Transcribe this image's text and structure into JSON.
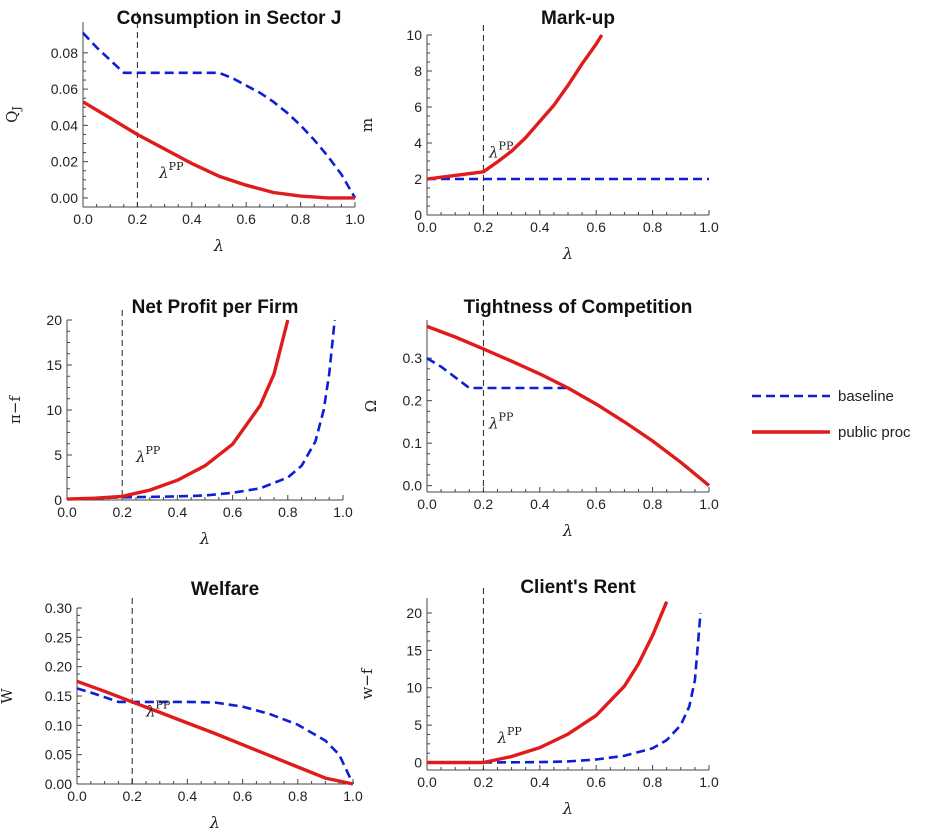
{
  "legend": {
    "position": "right",
    "entries": [
      {
        "label": "baseline",
        "color": "#0a1fd6",
        "dash": true
      },
      {
        "label": "public proc",
        "color": "#e01b1b",
        "dash": false
      }
    ]
  },
  "chart_data": [
    {
      "type": "line",
      "title": "Consumption in Sector J",
      "xlabel": "λ",
      "ylabel": "Q",
      "ylabel_sub": "J",
      "xlim": [
        0,
        1
      ],
      "ylim": [
        -0.005,
        0.097
      ],
      "xticks": [
        0,
        0.2,
        0.4,
        0.6,
        0.8,
        1.0
      ],
      "xtick_labels": [
        "0.0",
        "0.2",
        "0.4",
        "0.6",
        "0.8",
        "1.0"
      ],
      "yticks": [
        0,
        0.02,
        0.04,
        0.06,
        0.08
      ],
      "ytick_labels": [
        "0.00",
        "0.02",
        "0.04",
        "0.06",
        "0.08"
      ],
      "vline": 0.2,
      "annotation": {
        "text": "λ",
        "sup": "PP",
        "x": 0.28,
        "y": 0.011
      },
      "series": [
        {
          "name": "baseline",
          "style": "dashed",
          "color": "#0a1fd6",
          "x": [
            0,
            0.05,
            0.1,
            0.15,
            0.2,
            0.3,
            0.4,
            0.5,
            0.55,
            0.6,
            0.65,
            0.7,
            0.75,
            0.8,
            0.85,
            0.9,
            0.95,
            1.0
          ],
          "y": [
            0.091,
            0.083,
            0.076,
            0.069,
            0.069,
            0.069,
            0.069,
            0.069,
            0.066,
            0.062,
            0.058,
            0.053,
            0.047,
            0.04,
            0.032,
            0.023,
            0.013,
            0.0
          ]
        },
        {
          "name": "public proc",
          "style": "solid",
          "color": "#e01b1b",
          "x": [
            0,
            0.1,
            0.2,
            0.3,
            0.4,
            0.5,
            0.6,
            0.7,
            0.8,
            0.9,
            1.0
          ],
          "y": [
            0.053,
            0.044,
            0.035,
            0.027,
            0.019,
            0.012,
            0.007,
            0.003,
            0.001,
            0.0,
            0.0
          ]
        }
      ]
    },
    {
      "type": "line",
      "title": "Mark-up",
      "xlabel": "λ",
      "ylabel": "m",
      "xlim": [
        0,
        1
      ],
      "ylim": [
        0,
        10
      ],
      "xticks": [
        0,
        0.2,
        0.4,
        0.6,
        0.8,
        1.0
      ],
      "xtick_labels": [
        "0.0",
        "0.2",
        "0.4",
        "0.6",
        "0.8",
        "1.0"
      ],
      "yticks": [
        0,
        2,
        4,
        6,
        8,
        10
      ],
      "ytick_labels": [
        "0",
        "2",
        "4",
        "6",
        "8",
        "10"
      ],
      "vline": 0.2,
      "annotation": {
        "text": "λ",
        "sup": "PP",
        "x": 0.22,
        "y": 3.2
      },
      "series": [
        {
          "name": "baseline",
          "style": "dashed",
          "color": "#0a1fd6",
          "x": [
            0,
            1.0
          ],
          "y": [
            2,
            2
          ]
        },
        {
          "name": "public proc",
          "style": "solid",
          "color": "#e01b1b",
          "x": [
            0,
            0.1,
            0.2,
            0.25,
            0.3,
            0.35,
            0.4,
            0.45,
            0.5,
            0.55,
            0.6,
            0.62
          ],
          "y": [
            2.0,
            2.2,
            2.4,
            2.95,
            3.55,
            4.3,
            5.2,
            6.1,
            7.2,
            8.4,
            9.5,
            10.0
          ]
        }
      ]
    },
    {
      "type": "line",
      "title": "Net Profit per Firm",
      "xlabel": "λ",
      "ylabel": "π−f",
      "xlim": [
        0,
        1
      ],
      "ylim": [
        0,
        20
      ],
      "xticks": [
        0,
        0.2,
        0.4,
        0.6,
        0.8,
        1.0
      ],
      "xtick_labels": [
        "0.0",
        "0.2",
        "0.4",
        "0.6",
        "0.8",
        "1.0"
      ],
      "yticks": [
        0,
        5,
        10,
        15,
        20
      ],
      "ytick_labels": [
        "0",
        "5",
        "10",
        "15",
        "20"
      ],
      "vline": 0.2,
      "annotation": {
        "text": "λ",
        "sup": "PP",
        "x": 0.25,
        "y": 4.2
      },
      "series": [
        {
          "name": "baseline",
          "style": "dashed",
          "color": "#0a1fd6",
          "x": [
            0,
            0.2,
            0.3,
            0.4,
            0.5,
            0.6,
            0.7,
            0.8,
            0.85,
            0.9,
            0.93,
            0.95,
            0.97
          ],
          "y": [
            0.1,
            0.3,
            0.35,
            0.4,
            0.5,
            0.8,
            1.3,
            2.5,
            3.8,
            6.5,
            10.0,
            14.0,
            20.0
          ]
        },
        {
          "name": "public proc",
          "style": "solid",
          "color": "#e01b1b",
          "x": [
            0,
            0.1,
            0.2,
            0.3,
            0.4,
            0.5,
            0.6,
            0.7,
            0.75,
            0.8
          ],
          "y": [
            0.1,
            0.2,
            0.4,
            1.1,
            2.2,
            3.8,
            6.2,
            10.5,
            14.0,
            20.0
          ]
        }
      ]
    },
    {
      "type": "line",
      "title": "Tightness of Competition",
      "xlabel": "λ",
      "ylabel": "Ω",
      "xlim": [
        0,
        1
      ],
      "ylim": [
        -0.015,
        0.39
      ],
      "xticks": [
        0,
        0.2,
        0.4,
        0.6,
        0.8,
        1.0
      ],
      "xtick_labels": [
        "0.0",
        "0.2",
        "0.4",
        "0.6",
        "0.8",
        "1.0"
      ],
      "yticks": [
        0,
        0.1,
        0.2,
        0.3
      ],
      "ytick_labels": [
        "0.0",
        "0.1",
        "0.2",
        "0.3"
      ],
      "vline": 0.2,
      "annotation": {
        "text": "λ",
        "sup": "PP",
        "x": 0.22,
        "y": 0.135
      },
      "series": [
        {
          "name": "baseline",
          "style": "dashed",
          "color": "#0a1fd6",
          "x": [
            0,
            0.05,
            0.1,
            0.15,
            0.3,
            0.5
          ],
          "y": [
            0.3,
            0.28,
            0.255,
            0.23,
            0.23,
            0.23
          ]
        },
        {
          "name": "public proc",
          "style": "solid",
          "color": "#e01b1b",
          "x": [
            0,
            0.1,
            0.2,
            0.3,
            0.4,
            0.5,
            0.6,
            0.7,
            0.8,
            0.9,
            1.0
          ],
          "y": [
            0.375,
            0.35,
            0.322,
            0.293,
            0.263,
            0.23,
            0.192,
            0.15,
            0.105,
            0.055,
            0.0
          ]
        }
      ]
    },
    {
      "type": "line",
      "title": "Welfare",
      "xlabel": "λ",
      "ylabel": "W",
      "xlim": [
        0,
        1
      ],
      "ylim": [
        0,
        0.3
      ],
      "xticks": [
        0,
        0.2,
        0.4,
        0.6,
        0.8,
        1.0
      ],
      "xtick_labels": [
        "0.0",
        "0.2",
        "0.4",
        "0.6",
        "0.8",
        "1.0"
      ],
      "yticks": [
        0,
        0.05,
        0.1,
        0.15,
        0.2,
        0.25,
        0.3
      ],
      "ytick_labels": [
        "0.00",
        "0.05",
        "0.10",
        "0.15",
        "0.20",
        "0.25",
        "0.30"
      ],
      "vline": 0.2,
      "annotation": {
        "text": "λ",
        "sup": "PP",
        "x": 0.25,
        "y": 0.115
      },
      "series": [
        {
          "name": "baseline",
          "style": "dashed",
          "color": "#0a1fd6",
          "x": [
            0,
            0.05,
            0.1,
            0.15,
            0.2,
            0.3,
            0.4,
            0.5,
            0.6,
            0.7,
            0.8,
            0.9,
            0.95,
            1.0
          ],
          "y": [
            0.163,
            0.156,
            0.148,
            0.14,
            0.14,
            0.14,
            0.14,
            0.139,
            0.132,
            0.119,
            0.101,
            0.074,
            0.05,
            0.0
          ]
        },
        {
          "name": "public proc",
          "style": "solid",
          "color": "#e01b1b",
          "x": [
            0,
            0.1,
            0.2,
            0.3,
            0.4,
            0.5,
            0.6,
            0.7,
            0.8,
            0.9,
            1.0
          ],
          "y": [
            0.175,
            0.158,
            0.14,
            0.122,
            0.104,
            0.086,
            0.067,
            0.048,
            0.029,
            0.01,
            0.0
          ]
        }
      ]
    },
    {
      "type": "line",
      "title": "Client's Rent",
      "xlabel": "λ",
      "ylabel": "w−f",
      "xlim": [
        0,
        1
      ],
      "ylim": [
        -1,
        22
      ],
      "xticks": [
        0,
        0.2,
        0.4,
        0.6,
        0.8,
        1.0
      ],
      "xtick_labels": [
        "0.0",
        "0.2",
        "0.4",
        "0.6",
        "0.8",
        "1.0"
      ],
      "yticks": [
        0,
        5,
        10,
        15,
        20
      ],
      "ytick_labels": [
        "0",
        "5",
        "10",
        "15",
        "20"
      ],
      "vline": 0.2,
      "annotation": {
        "text": "λ",
        "sup": "PP",
        "x": 0.25,
        "y": 2.6
      },
      "series": [
        {
          "name": "baseline",
          "style": "dashed",
          "color": "#0a1fd6",
          "x": [
            0,
            0.2,
            0.4,
            0.5,
            0.6,
            0.7,
            0.8,
            0.85,
            0.9,
            0.93,
            0.95,
            0.97
          ],
          "y": [
            0,
            0,
            0.05,
            0.15,
            0.4,
            0.9,
            1.9,
            3.0,
            5.0,
            7.5,
            11.0,
            20.0
          ]
        },
        {
          "name": "public proc",
          "style": "solid",
          "color": "#e01b1b",
          "x": [
            0,
            0.2,
            0.3,
            0.4,
            0.5,
            0.6,
            0.7,
            0.75,
            0.8,
            0.85
          ],
          "y": [
            0,
            0,
            0.8,
            2.0,
            3.8,
            6.3,
            10.2,
            13.2,
            17.0,
            21.5
          ]
        }
      ]
    }
  ]
}
